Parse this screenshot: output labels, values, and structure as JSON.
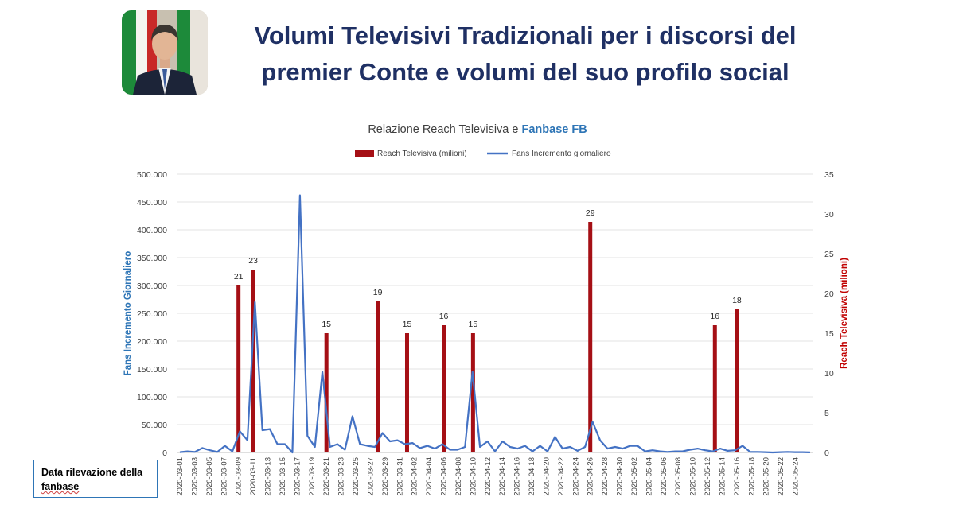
{
  "header": {
    "title_line1": "Volumi Televisivi Tradizionali per i discorsi del",
    "title_line2": "premier Conte e volumi del suo profilo social"
  },
  "note": {
    "line1": "Data rilevazione della",
    "line2": "fanbase"
  },
  "colors": {
    "title": "#1f3064",
    "fans_line": "#4472c4",
    "reach_bar": "#a50f15",
    "left_axis_title": "#2e75b6",
    "right_axis_title": "#c00000"
  },
  "chart_data": {
    "type": "bar+line",
    "title_prefix": "Relazione Reach Televisiva e ",
    "title_highlight": "Fanbase FB",
    "legend_position": "top",
    "grid": true,
    "ylabel_left": "Fans Incremento Giornaliero",
    "ylabel_right": "Reach Televisiva (milioni)",
    "ylim_left": [
      0,
      500000
    ],
    "ylim_right": [
      0,
      35
    ],
    "left_ticks": [
      "0",
      "50.000",
      "100.000",
      "150.000",
      "200.000",
      "250.000",
      "300.000",
      "350.000",
      "400.000",
      "450.000",
      "500.000"
    ],
    "right_ticks": [
      "0",
      "5",
      "10",
      "15",
      "20",
      "25",
      "30",
      "35"
    ],
    "x_tick_labels": [
      "2020-03-01",
      "2020-03-03",
      "2020-03-05",
      "2020-03-07",
      "2020-03-09",
      "2020-03-11",
      "2020-03-13",
      "2020-03-15",
      "2020-03-17",
      "2020-03-19",
      "2020-03-21",
      "2020-03-23",
      "2020-03-25",
      "2020-03-27",
      "2020-03-29",
      "2020-03-31",
      "2020-04-02",
      "2020-04-04",
      "2020-04-06",
      "2020-04-08",
      "2020-04-10",
      "2020-04-12",
      "2020-04-14",
      "2020-04-16",
      "2020-04-18",
      "2020-04-20",
      "2020-04-22",
      "2020-04-24",
      "2020-04-26",
      "2020-04-28",
      "2020-04-30",
      "2020-05-02",
      "2020-05-04",
      "2020-05-06",
      "2020-05-08",
      "2020-05-10",
      "2020-05-12",
      "2020-05-14",
      "2020-05-16",
      "2020-05-18",
      "2020-05-20",
      "2020-05-22",
      "2020-05-24"
    ],
    "series": [
      {
        "name": "Reach Televisiva (milioni)",
        "type": "bar",
        "axis": "right",
        "points": [
          {
            "x": "2020-03-09",
            "y": 21
          },
          {
            "x": "2020-03-11",
            "y": 23
          },
          {
            "x": "2020-03-21",
            "y": 15
          },
          {
            "x": "2020-03-28",
            "y": 19
          },
          {
            "x": "2020-04-01",
            "y": 15
          },
          {
            "x": "2020-04-06",
            "y": 16
          },
          {
            "x": "2020-04-10",
            "y": 15
          },
          {
            "x": "2020-04-26",
            "y": 29
          },
          {
            "x": "2020-05-13",
            "y": 16
          },
          {
            "x": "2020-05-16",
            "y": 18
          }
        ]
      },
      {
        "name": "Fans Incremento giornaliero",
        "type": "line",
        "axis": "left",
        "x_start": "2020-03-01",
        "x_end": "2020-05-26",
        "values": [
          500,
          2000,
          1000,
          8000,
          4000,
          1000,
          12000,
          2000,
          38000,
          22000,
          270000,
          40000,
          42000,
          15000,
          15000,
          0,
          462000,
          30000,
          10000,
          145000,
          10000,
          15000,
          5000,
          65000,
          15000,
          12000,
          10000,
          35000,
          20000,
          22000,
          15000,
          17000,
          8000,
          12000,
          7000,
          15000,
          5000,
          5000,
          10000,
          145000,
          10000,
          20000,
          2000,
          20000,
          10000,
          7000,
          12000,
          2000,
          12000,
          2000,
          28000,
          7000,
          10000,
          3000,
          10000,
          55000,
          22000,
          7000,
          10000,
          7000,
          12000,
          12000,
          2000,
          4000,
          2000,
          1000,
          2000,
          2000,
          5000,
          7000,
          4000,
          2000,
          7000,
          3000,
          4000,
          12000,
          1000,
          1000,
          500,
          0,
          500,
          1000,
          500,
          500,
          200
        ]
      }
    ]
  }
}
